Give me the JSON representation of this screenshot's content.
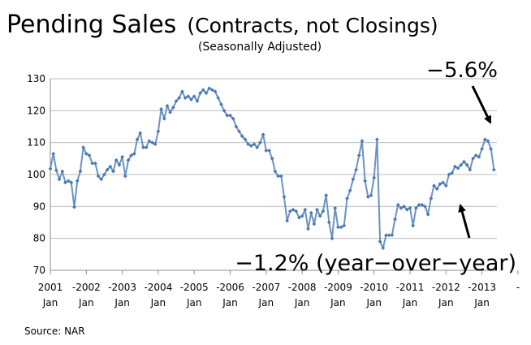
{
  "chart_data": {
    "type": "line",
    "title_main": "Pending Sales",
    "title_paren": "(Contracts, not Closings)",
    "subtitle": "(Seasonally Adjusted)",
    "xlabel": "",
    "ylabel": "",
    "ylim": [
      70,
      130
    ],
    "yticks": [
      70,
      80,
      90,
      100,
      110,
      120,
      130
    ],
    "grid": "horizontal",
    "x_start": "2001-01",
    "x_end": "2013-06",
    "xtick_labels": [
      {
        "year": "2001",
        "month": "Jan"
      },
      {
        "year": "-2002",
        "month": "Jan"
      },
      {
        "year": "-2003",
        "month": "Jan"
      },
      {
        "year": "-2004",
        "month": "Jan"
      },
      {
        "year": "-2005",
        "month": "Jan"
      },
      {
        "year": "-2006",
        "month": "Jan"
      },
      {
        "year": "-2007",
        "month": "Jan"
      },
      {
        "year": "-2008",
        "month": "Jan"
      },
      {
        "year": "-2009",
        "month": "Jan"
      },
      {
        "year": "-2010",
        "month": "Jan"
      },
      {
        "year": "-2011",
        "month": "Jan"
      },
      {
        "year": "-2012",
        "month": "Jan"
      },
      {
        "year": "-2013",
        "month": "Jan"
      },
      {
        "year": "-",
        "month": ""
      }
    ],
    "line_color": "#6b93c4",
    "marker_color": "#4a78b0",
    "series": [
      {
        "values": [
          101.8,
          106.5,
          101.3,
          98.5,
          101.0,
          97.5,
          98.0,
          97.5,
          89.8,
          98.0,
          101.0,
          108.5,
          106.5,
          106.0,
          103.5,
          103.5,
          99.5,
          98.5,
          100.0,
          101.5,
          102.5,
          101.0,
          104.5,
          103.0,
          105.5,
          99.5,
          104.5,
          106.0,
          106.5,
          111.0,
          113.0,
          108.5,
          108.5,
          110.5,
          110.0,
          109.5,
          113.5,
          120.5,
          117.5,
          121.5,
          119.5,
          121.0,
          123.0,
          124.0,
          126.0,
          124.0,
          124.5,
          123.5,
          124.5,
          123.0,
          125.5,
          126.5,
          125.5,
          127.0,
          126.5,
          126.0,
          124.0,
          122.0,
          120.0,
          118.5,
          118.5,
          117.5,
          115.0,
          113.5,
          112.0,
          111.0,
          109.5,
          109.0,
          109.5,
          108.5,
          110.0,
          112.5,
          107.5,
          107.5,
          105.0,
          101.0,
          99.5,
          99.5,
          93.0,
          85.5,
          88.5,
          89.0,
          88.5,
          86.5,
          87.0,
          89.0,
          83.0,
          88.0,
          84.5,
          89.0,
          87.0,
          88.5,
          93.5,
          85.0,
          80.0,
          89.5,
          83.5,
          83.5,
          84.0,
          92.5,
          95.0,
          98.5,
          101.5,
          106.0,
          110.5,
          98.0,
          93.0,
          93.5,
          99.0,
          111.0,
          79.0,
          77.0,
          81.0,
          81.0,
          81.0,
          86.0,
          90.5,
          89.5,
          90.0,
          89.0,
          89.5,
          84.0,
          89.5,
          90.5,
          90.5,
          90.0,
          87.5,
          92.5,
          96.5,
          95.5,
          97.0,
          97.5,
          96.5,
          100.0,
          100.5,
          102.5,
          102.0,
          103.0,
          104.0,
          103.0,
          101.5,
          105.0,
          106.0,
          105.5,
          108.0,
          111.0,
          110.5,
          108.0,
          101.5
        ]
      }
    ],
    "annotations": [
      {
        "text": "−5.6%",
        "target_index": 145
      },
      {
        "text": "−1.2% (year−over−year)",
        "target_index": 137
      }
    ],
    "source": "Source: NAR"
  }
}
